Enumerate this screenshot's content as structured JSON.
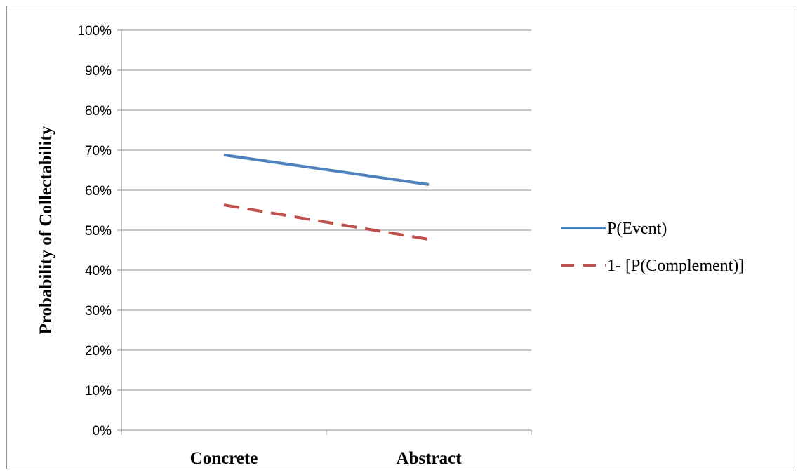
{
  "chart_data": {
    "type": "line",
    "title": "",
    "xlabel": "",
    "ylabel": "Probability of Collectability",
    "categories": [
      "Concrete",
      "Abstract"
    ],
    "yticks": [
      "0%",
      "10%",
      "20%",
      "30%",
      "40%",
      "50%",
      "60%",
      "70%",
      "80%",
      "90%",
      "100%"
    ],
    "ylim": [
      0,
      1
    ],
    "grid": true,
    "legend_position": "right",
    "series": [
      {
        "name": "P(Event)",
        "values": [
          0.688,
          0.614
        ],
        "color": "#4f81bd",
        "style": "solid"
      },
      {
        "name": "1- [P(Complement)]",
        "values": [
          0.563,
          0.477
        ],
        "color": "#c0504d",
        "style": "dashed"
      }
    ]
  }
}
